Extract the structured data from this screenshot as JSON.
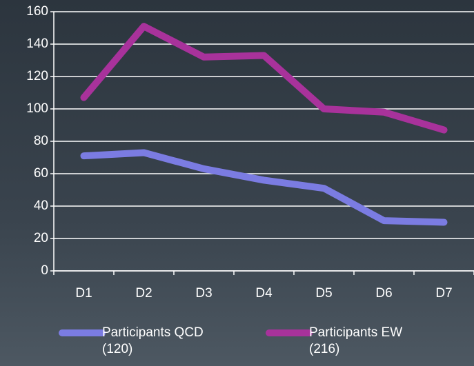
{
  "chart_data": {
    "type": "line",
    "categories": [
      "D1",
      "D2",
      "D3",
      "D4",
      "D5",
      "D6",
      "D7"
    ],
    "series": [
      {
        "name": "Participants QCD (120)",
        "color": "#7b7ce2",
        "values": [
          71,
          73,
          63,
          56,
          51,
          31,
          30
        ]
      },
      {
        "name": "Participants EW (216)",
        "color": "#a8329b",
        "values": [
          107,
          151,
          132,
          133,
          100,
          98,
          87
        ]
      }
    ],
    "ylim": [
      0,
      160
    ],
    "yticks": [
      0,
      20,
      40,
      60,
      80,
      100,
      120,
      140,
      160
    ],
    "grid": true,
    "legend": "bottom"
  }
}
